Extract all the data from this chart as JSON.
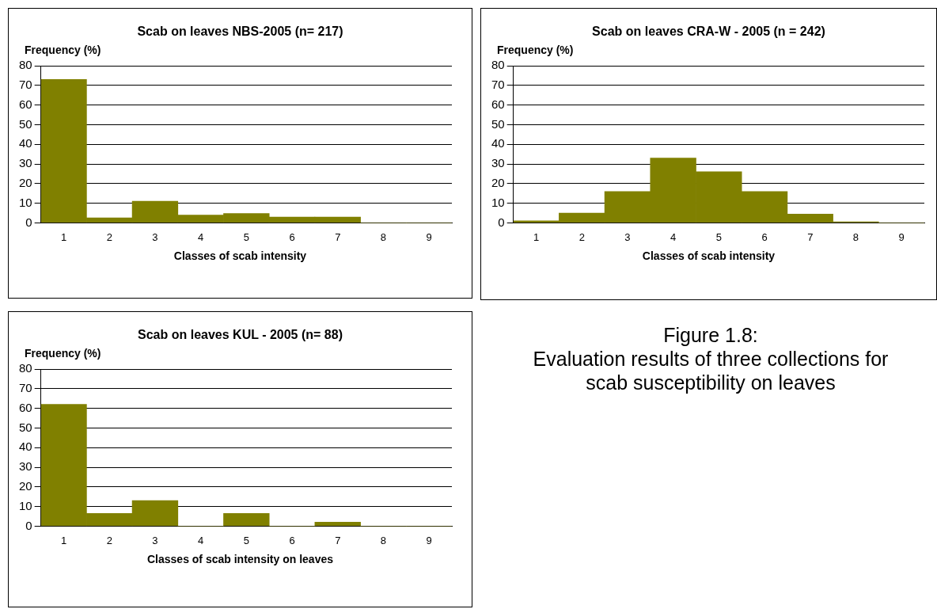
{
  "chart_data": [
    {
      "type": "bar",
      "title": "Scab on leaves NBS-2005 (n= 217)",
      "ylabel": "Frequency (%)",
      "xlabel": "Classes of scab intensity",
      "categories": [
        "1",
        "2",
        "3",
        "4",
        "5",
        "6",
        "7",
        "8",
        "9"
      ],
      "values": [
        73,
        2.5,
        11,
        4,
        4.8,
        3,
        3,
        0,
        0
      ],
      "color": "#808000",
      "ylim": [
        0,
        80
      ],
      "yticks": [
        0,
        10,
        20,
        30,
        40,
        50,
        60,
        70,
        80
      ],
      "grid": "y"
    },
    {
      "type": "bar",
      "title": "Scab on leaves CRA-W - 2005 (n = 242)",
      "ylabel": "Frequency (%)",
      "xlabel": "Classes of scab intensity",
      "categories": [
        "1",
        "2",
        "3",
        "4",
        "5",
        "6",
        "7",
        "8",
        "9"
      ],
      "values": [
        1,
        5,
        16,
        33,
        26,
        16,
        4.5,
        0.5,
        0
      ],
      "color": "#808000",
      "ylim": [
        0,
        80
      ],
      "yticks": [
        0,
        10,
        20,
        30,
        40,
        50,
        60,
        70,
        80
      ],
      "grid": "y"
    },
    {
      "type": "bar",
      "title": "Scab on leaves KUL - 2005 (n= 88)",
      "ylabel": "Frequency (%)",
      "xlabel": "Classes of scab intensity on leaves",
      "categories": [
        "1",
        "2",
        "3",
        "4",
        "5",
        "6",
        "7",
        "8",
        "9"
      ],
      "values": [
        62,
        6.5,
        13,
        0,
        6.5,
        0,
        2,
        0,
        0
      ],
      "color": "#808000",
      "ylim": [
        0,
        80
      ],
      "yticks": [
        0,
        10,
        20,
        30,
        40,
        50,
        60,
        70,
        80
      ],
      "grid": "y"
    },
    {
      "type": "other",
      "title": "Figure 1.8:",
      "annotations": [
        "Evaluation results of three collections for scab susceptibility on leaves"
      ]
    }
  ]
}
